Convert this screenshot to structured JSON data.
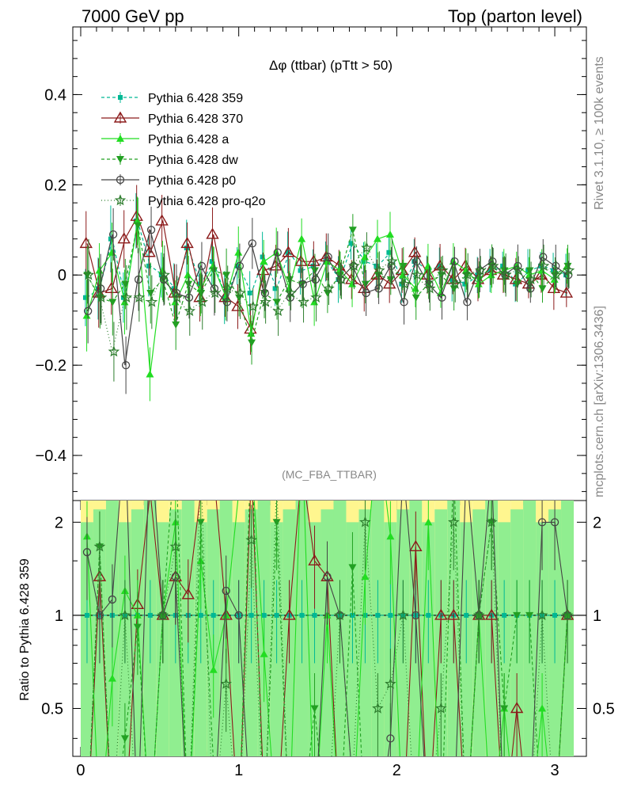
{
  "header": {
    "left": "7000 GeV pp",
    "right": "Top (parton level)"
  },
  "plot_title": "Δφ (ttbar) (pTtt > 50)",
  "watermark": "(MC_FBA_TTBAR)",
  "side_labels": {
    "rivet": "Rivet 3.1.10, ≥ 100k events",
    "mcplots": "mcplots.cern.ch [arXiv:1306.3436]"
  },
  "ratio_ylabel": "Ratio to Pythia 6.428 359",
  "chart_data": [
    {
      "type": "line",
      "xlim": [
        -0.05,
        3.2
      ],
      "ylim": [
        -0.5,
        0.55
      ],
      "yticks": [
        0.4,
        0.2,
        0,
        -0.2,
        -0.4
      ],
      "ytick_labels": [
        "0.4",
        "0.2",
        "0",
        "−0.2",
        "−0.4"
      ],
      "legend_position": "top-left",
      "x": [
        0.04,
        0.12,
        0.2,
        0.28,
        0.36,
        0.44,
        0.52,
        0.6,
        0.68,
        0.76,
        0.84,
        0.92,
        1.0,
        1.08,
        1.16,
        1.24,
        1.32,
        1.4,
        1.48,
        1.56,
        1.64,
        1.72,
        1.8,
        1.88,
        1.96,
        2.04,
        2.12,
        2.2,
        2.28,
        2.36,
        2.44,
        2.52,
        2.6,
        2.68,
        2.76,
        2.84,
        2.92,
        3.0,
        3.08
      ],
      "series": [
        {
          "name": "Pythia 6.428 359",
          "color": "#00b894",
          "marker": "square",
          "dash": "4,3",
          "values": [
            -0.05,
            -0.03,
            0.08,
            -0.05,
            0.12,
            0.02,
            0.0,
            -0.03,
            0.06,
            -0.02,
            0.03,
            -0.05,
            0.02,
            -0.04,
            0.04,
            -0.03,
            0.05,
            0.01,
            0.02,
            0.03,
            -0.01,
            0.07,
            0.03,
            0.02,
            0.05,
            -0.02,
            0.03,
            0.01,
            0.02,
            -0.01,
            -0.02,
            0.0,
            0.01,
            0.02,
            -0.02,
            0.01,
            0.02,
            0.01,
            0.0
          ]
        },
        {
          "name": "Pythia 6.428 370",
          "color": "#8b1a1a",
          "marker": "triangle-open",
          "dash": "",
          "values": [
            0.07,
            -0.04,
            -0.03,
            0.08,
            0.13,
            0.05,
            0.12,
            -0.04,
            0.07,
            -0.05,
            0.09,
            -0.05,
            -0.07,
            -0.12,
            0.01,
            0.02,
            0.05,
            0.03,
            0.03,
            0.04,
            0.02,
            -0.01,
            -0.03,
            0.0,
            -0.02,
            0.01,
            0.05,
            0.0,
            0.02,
            -0.01,
            0.02,
            -0.01,
            0.01,
            0.0,
            -0.01,
            -0.02,
            0.0,
            -0.03,
            -0.04
          ]
        },
        {
          "name": "Pythia 6.428 a",
          "color": "#22dd22",
          "marker": "triangle",
          "dash": "",
          "values": [
            -0.09,
            0.01,
            0.05,
            -0.06,
            0.12,
            -0.22,
            0.01,
            -0.06,
            0.0,
            -0.03,
            0.02,
            -0.05,
            0.05,
            -0.13,
            0.03,
            0.05,
            -0.03,
            0.08,
            -0.06,
            0.03,
            0.01,
            -0.02,
            0.04,
            0.08,
            0.09,
            0.0,
            -0.03,
            0.02,
            -0.04,
            0.03,
            0.01,
            -0.02,
            0.0,
            0.01,
            0.02,
            0.0,
            0.01,
            -0.01,
            0.02
          ]
        },
        {
          "name": "Pythia 6.428 dw",
          "color": "#22a022",
          "marker": "triangle-down",
          "dash": "4,3",
          "values": [
            0.0,
            -0.05,
            -0.06,
            -0.02,
            0.11,
            -0.04,
            -0.01,
            -0.11,
            -0.02,
            -0.04,
            0.01,
            0.0,
            -0.05,
            -0.15,
            -0.04,
            -0.06,
            -0.01,
            -0.02,
            0.01,
            -0.04,
            0.0,
            0.1,
            -0.02,
            0.0,
            -0.01,
            0.02,
            -0.05,
            -0.02,
            0.0,
            -0.03,
            0.0,
            -0.01,
            0.02,
            0.01,
            -0.02,
            0.01,
            -0.03,
            0.0,
            0.02
          ]
        },
        {
          "name": "Pythia 6.428 p0",
          "color": "#444444",
          "marker": "circle-open",
          "dash": "",
          "values": [
            -0.08,
            -0.03,
            0.09,
            -0.2,
            -0.01,
            0.1,
            -0.01,
            -0.04,
            -0.05,
            0.02,
            -0.03,
            -0.06,
            0.02,
            0.07,
            -0.04,
            0.05,
            -0.05,
            -0.02,
            -0.01,
            0.04,
            -0.01,
            0.02,
            -0.04,
            -0.03,
            0.02,
            -0.06,
            0.03,
            -0.02,
            -0.05,
            0.03,
            -0.06,
            0.01,
            0.03,
            0.0,
            0.02,
            -0.03,
            0.04,
            0.02,
            0.0
          ]
        },
        {
          "name": "Pythia 6.428 pro-q2o",
          "color": "#2e7d2e",
          "marker": "star-open",
          "dash": "1,3",
          "values": [
            0.0,
            -0.05,
            -0.17,
            -0.05,
            -0.05,
            -0.06,
            0.0,
            -0.05,
            -0.08,
            -0.06,
            -0.04,
            -0.03,
            -0.04,
            -0.07,
            -0.06,
            -0.08,
            -0.04,
            -0.06,
            -0.05,
            -0.03,
            -0.01,
            0.02,
            0.06,
            0.01,
            0.03,
            -0.02,
            0.0,
            -0.03,
            0.01,
            -0.02,
            0.0,
            0.01,
            0.02,
            0.0,
            0.01,
            -0.01,
            0.02,
            0.0,
            0.01
          ]
        }
      ]
    },
    {
      "type": "line",
      "ylabel": "Ratio to Pythia 6.428 359",
      "xlim": [
        -0.05,
        3.2
      ],
      "ylim": [
        0.35,
        2.35
      ],
      "yscale": "log",
      "xticks": [
        0,
        1,
        2,
        3
      ],
      "xtick_labels": [
        "0",
        "1",
        "2",
        "3"
      ],
      "yticks": [
        2,
        1,
        0.5
      ],
      "ytick_labels": [
        "2",
        "1",
        "0.5"
      ],
      "reference_line": 1
    }
  ]
}
